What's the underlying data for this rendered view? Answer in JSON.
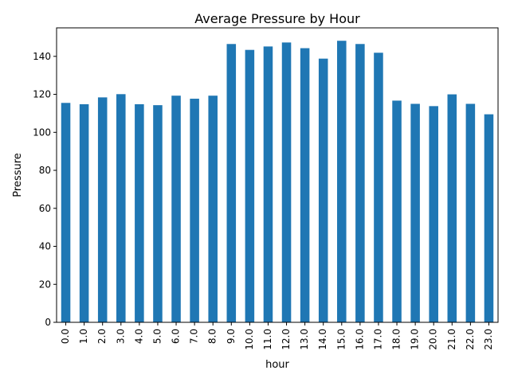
{
  "chart_data": {
    "type": "bar",
    "title": "Average Pressure by Hour",
    "xlabel": "hour",
    "ylabel": "Pressure",
    "categories": [
      "0.0",
      "1.0",
      "2.0",
      "3.0",
      "4.0",
      "5.0",
      "6.0",
      "7.0",
      "8.0",
      "9.0",
      "10.0",
      "11.0",
      "12.0",
      "13.0",
      "14.0",
      "15.0",
      "16.0",
      "17.0",
      "18.0",
      "19.0",
      "20.0",
      "21.0",
      "22.0",
      "23.0"
    ],
    "values": [
      115.5,
      114.8,
      118.4,
      120.1,
      114.8,
      114.3,
      119.3,
      117.7,
      119.3,
      146.5,
      143.4,
      145.2,
      147.3,
      144.3,
      138.8,
      148.2,
      146.5,
      141.9,
      116.7,
      115.0,
      113.8,
      120.0,
      115.0,
      109.5
    ],
    "ylim": [
      0,
      155
    ],
    "yticks": [
      0,
      20,
      40,
      60,
      80,
      100,
      120,
      140
    ],
    "grid": false,
    "bar_color": "#1f77b4"
  }
}
